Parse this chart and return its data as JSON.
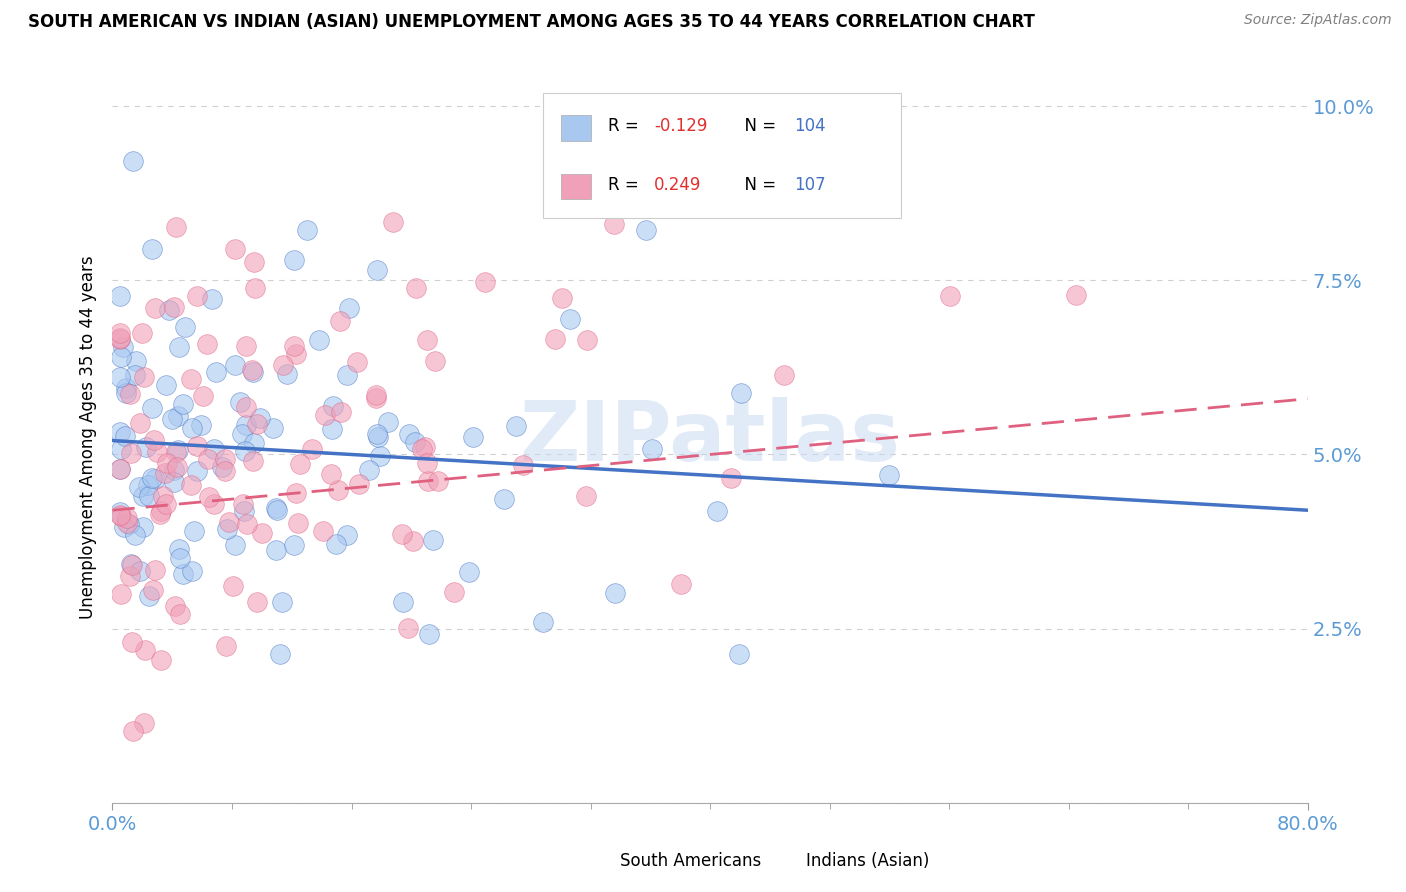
{
  "title": "SOUTH AMERICAN VS INDIAN (ASIAN) UNEMPLOYMENT AMONG AGES 35 TO 44 YEARS CORRELATION CHART",
  "source": "Source: ZipAtlas.com",
  "ylabel": "Unemployment Among Ages 35 to 44 years",
  "ytick_labels": [
    "",
    "2.5%",
    "5.0%",
    "7.5%",
    "10.0%"
  ],
  "xtick_left": "0.0%",
  "xtick_right": "80.0%",
  "legend_label1": "South Americans",
  "legend_label2": "Indians (Asian)",
  "blue_color": "#A8C8F0",
  "pink_color": "#F0A0B8",
  "blue_line_color": "#4472C4",
  "pink_line_color": "#E06080",
  "watermark": "ZIPatlas",
  "watermark_color": "#C5D8F0",
  "blue_R": -0.129,
  "pink_R": 0.249,
  "blue_N": 104,
  "pink_N": 107,
  "background_color": "#FFFFFF",
  "grid_color": "#D0D0D0",
  "tick_color": "#5B9BD5",
  "ylabel_color": "#000000",
  "title_color": "#000000",
  "source_color": "#808080"
}
